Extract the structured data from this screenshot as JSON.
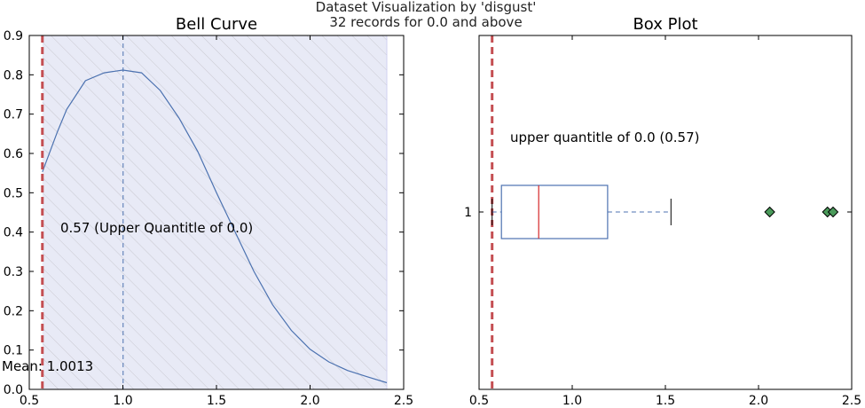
{
  "figure": {
    "suptitle_line1": "Dataset Visualization by 'disgust'",
    "suptitle_line2": "32 records for 0.0 and above"
  },
  "colors": {
    "curve": "#4c72b0",
    "quantile_line": "#c44e52",
    "fill": "#e8eaf6",
    "hatch": "#c8c8d0",
    "box": "#4c72b0",
    "median": "#d62728",
    "outlier": "#4a9a5a"
  },
  "chart_data": [
    {
      "type": "line",
      "title": "Bell Curve",
      "xlabel": "",
      "ylabel": "",
      "xlim": [
        0.5,
        2.5
      ],
      "ylim": [
        0.0,
        0.9
      ],
      "xticks": [
        "0.5",
        "1.0",
        "1.5",
        "2.0",
        "2.5"
      ],
      "yticks": [
        "0.0",
        "0.1",
        "0.2",
        "0.3",
        "0.4",
        "0.5",
        "0.6",
        "0.7",
        "0.8",
        "0.9"
      ],
      "grid": false,
      "series": [
        {
          "x": [
            0.57,
            0.65,
            0.7,
            0.8,
            0.9,
            1.0,
            1.1,
            1.2,
            1.3,
            1.4,
            1.5,
            1.6,
            1.7,
            1.8,
            1.9,
            2.0,
            2.1,
            2.2,
            2.3,
            2.41
          ],
          "y": [
            0.553,
            0.655,
            0.712,
            0.785,
            0.805,
            0.812,
            0.805,
            0.76,
            0.69,
            0.605,
            0.5,
            0.4,
            0.3,
            0.215,
            0.15,
            0.102,
            0.07,
            0.048,
            0.033,
            0.017
          ]
        }
      ],
      "fill_range": [
        0.57,
        2.41
      ],
      "mean": 1.0013,
      "upper_quantile": 0.57,
      "annotations": {
        "quantile_label": "0.57 (Upper Quantitle of 0.0)",
        "mean_label": "Mean: 1.0013"
      }
    },
    {
      "type": "box",
      "title": "Box Plot",
      "xlim": [
        0.5,
        2.5
      ],
      "xticks": [
        "0.5",
        "1.0",
        "1.5",
        "2.0",
        "2.5"
      ],
      "yticks": [
        "1"
      ],
      "box": {
        "whisker_low": 0.57,
        "q1": 0.62,
        "median": 0.82,
        "q3": 1.19,
        "whisker_high": 1.53
      },
      "outliers": [
        2.06,
        2.37,
        2.4
      ],
      "upper_quantile": 0.57,
      "annotations": {
        "quantile_label": "upper quantitle of 0.0 (0.57)"
      }
    }
  ]
}
